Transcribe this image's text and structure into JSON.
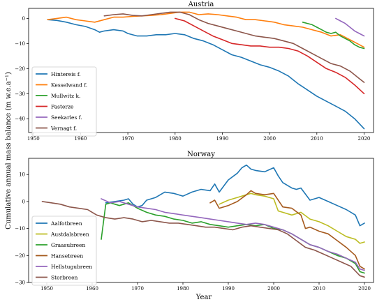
{
  "figure": {
    "ylabel": "Cumulative annual mass balance (m w.e.a⁻¹)",
    "xlabel": "Year"
  },
  "chart_data": [
    {
      "type": "line",
      "title": "Austria",
      "xlim": [
        1949,
        2022
      ],
      "ylim": [
        -45.5,
        4
      ],
      "xticks": [
        1950,
        1960,
        1970,
        1980,
        1990,
        2000,
        2010,
        2020
      ],
      "yticks": [
        0,
        -10,
        -20,
        -30,
        -40
      ],
      "legend_position": "lower-left",
      "series": [
        {
          "name": "Hintereis f.",
          "color": "#1f77b4",
          "x": [
            1953,
            1955,
            1957,
            1959,
            1961,
            1963,
            1964,
            1965,
            1967,
            1969,
            1970,
            1972,
            1974,
            1976,
            1978,
            1980,
            1982,
            1984,
            1986,
            1988,
            1990,
            1992,
            1994,
            1996,
            1998,
            2000,
            2002,
            2004,
            2006,
            2008,
            2010,
            2012,
            2014,
            2016,
            2018,
            2020
          ],
          "y": [
            -0.5,
            -0.8,
            -1.5,
            -2.5,
            -3.2,
            -4.5,
            -5.5,
            -5.0,
            -4.5,
            -5.0,
            -6.0,
            -7.0,
            -7.0,
            -6.5,
            -6.5,
            -6.0,
            -6.5,
            -8.0,
            -9.0,
            -10.5,
            -12.5,
            -14.5,
            -15.5,
            -17.0,
            -18.5,
            -19.5,
            -21.0,
            -23.0,
            -26.0,
            -28.5,
            -31.0,
            -33.0,
            -35.0,
            -37.0,
            -40.0,
            -44.0
          ]
        },
        {
          "name": "Kesselwand f.",
          "color": "#ff7f0e",
          "x": [
            1953,
            1955,
            1957,
            1959,
            1961,
            1963,
            1965,
            1967,
            1969,
            1971,
            1973,
            1975,
            1977,
            1979,
            1981,
            1983,
            1985,
            1987,
            1989,
            1991,
            1993,
            1995,
            1997,
            1999,
            2001,
            2003,
            2005,
            2007,
            2009,
            2011,
            2013,
            2015,
            2017,
            2019,
            2020
          ],
          "y": [
            -0.5,
            0.0,
            0.5,
            -0.5,
            -1.0,
            -1.5,
            -0.5,
            0.5,
            0.5,
            0.8,
            1.0,
            1.2,
            1.5,
            2.0,
            2.5,
            2.5,
            1.5,
            1.8,
            1.5,
            1.0,
            0.5,
            -0.5,
            -0.5,
            -1.0,
            -1.5,
            -2.5,
            -3.0,
            -3.5,
            -4.5,
            -5.5,
            -7.0,
            -6.5,
            -8.5,
            -10.5,
            -11.5
          ]
        },
        {
          "name": "Mullwitz k.",
          "color": "#2ca02c",
          "x": [
            2007,
            2008,
            2009,
            2010,
            2011,
            2012,
            2013,
            2014,
            2015,
            2016,
            2017,
            2018,
            2019,
            2020
          ],
          "y": [
            -1.5,
            -2.0,
            -2.5,
            -3.5,
            -4.5,
            -5.5,
            -6.0,
            -5.5,
            -7.0,
            -8.0,
            -9.0,
            -10.5,
            -11.5,
            -12.0
          ]
        },
        {
          "name": "Pasterze",
          "color": "#d62728",
          "x": [
            1980,
            1982,
            1984,
            1986,
            1988,
            1990,
            1992,
            1994,
            1996,
            1998,
            2000,
            2002,
            2004,
            2006,
            2008,
            2010,
            2012,
            2014,
            2016,
            2018,
            2020
          ],
          "y": [
            0.0,
            -1.0,
            -3.0,
            -5.0,
            -7.0,
            -8.5,
            -10.0,
            -10.5,
            -11.0,
            -11.0,
            -11.5,
            -11.5,
            -12.0,
            -13.0,
            -15.0,
            -17.5,
            -20.0,
            -21.5,
            -23.5,
            -26.5,
            -30.0
          ]
        },
        {
          "name": "Seekarles f.",
          "color": "#9467bd",
          "x": [
            2014,
            2015,
            2016,
            2017,
            2018,
            2019,
            2020
          ],
          "y": [
            0.0,
            -1.0,
            -2.0,
            -3.5,
            -5.0,
            -6.0,
            -7.0
          ]
        },
        {
          "name": "Vernagt f.",
          "color": "#8c564b",
          "x": [
            1965,
            1967,
            1969,
            1971,
            1973,
            1975,
            1977,
            1979,
            1981,
            1983,
            1985,
            1987,
            1989,
            1991,
            1993,
            1995,
            1997,
            1999,
            2001,
            2003,
            2005,
            2007,
            2009,
            2011,
            2013,
            2015,
            2017,
            2019,
            2020
          ],
          "y": [
            1.0,
            1.5,
            1.8,
            1.2,
            1.0,
            1.5,
            2.0,
            2.5,
            2.5,
            1.5,
            -0.5,
            -2.0,
            -3.0,
            -4.0,
            -5.0,
            -6.0,
            -7.0,
            -7.5,
            -8.0,
            -9.0,
            -10.0,
            -12.0,
            -14.0,
            -16.0,
            -18.0,
            -19.0,
            -21.0,
            -24.0,
            -25.5
          ]
        }
      ]
    },
    {
      "type": "line",
      "title": "Norway",
      "xlim": [
        1946,
        2022
      ],
      "ylim": [
        -30,
        16
      ],
      "xticks": [
        1950,
        1960,
        1970,
        1980,
        1990,
        2000,
        2010,
        2020
      ],
      "yticks": [
        10,
        0,
        -10,
        -20,
        -30
      ],
      "legend_position": "lower-left",
      "series": [
        {
          "name": "Aalfotbreen",
          "color": "#1f77b4",
          "x": [
            1963,
            1965,
            1967,
            1968,
            1969,
            1970,
            1971,
            1972,
            1974,
            1976,
            1978,
            1980,
            1982,
            1984,
            1986,
            1987,
            1988,
            1990,
            1992,
            1993,
            1994,
            1995,
            1996,
            1998,
            2000,
            2001,
            2002,
            2004,
            2005,
            2006,
            2008,
            2010,
            2012,
            2014,
            2016,
            2018,
            2019,
            2020
          ],
          "y": [
            -0.5,
            0.0,
            0.5,
            1.0,
            -1.0,
            -2.0,
            -1.5,
            0.5,
            1.5,
            3.5,
            3.0,
            2.0,
            3.5,
            4.5,
            4.0,
            6.5,
            3.5,
            8.0,
            10.5,
            12.5,
            13.5,
            12.0,
            11.5,
            11.0,
            12.5,
            9.5,
            7.0,
            5.0,
            4.5,
            5.0,
            0.5,
            1.5,
            0.0,
            -1.5,
            -3.0,
            -5.0,
            -9.0,
            -8.0
          ]
        },
        {
          "name": "Austdalsbreen",
          "color": "#bcbd22",
          "x": [
            1988,
            1990,
            1992,
            1994,
            1995,
            1996,
            1998,
            2000,
            2001,
            2002,
            2004,
            2006,
            2008,
            2010,
            2012,
            2014,
            2016,
            2018,
            2019,
            2020
          ],
          "y": [
            -1.0,
            0.5,
            1.5,
            2.5,
            3.0,
            2.5,
            2.0,
            1.0,
            -3.5,
            -4.0,
            -5.0,
            -4.0,
            -6.5,
            -7.5,
            -9.0,
            -11.0,
            -13.0,
            -14.0,
            -15.5,
            -15.0
          ]
        },
        {
          "name": "Graasubreen",
          "color": "#2ca02c",
          "x": [
            1962,
            1963,
            1964,
            1966,
            1968,
            1970,
            1972,
            1974,
            1976,
            1978,
            1980,
            1982,
            1984,
            1986,
            1988,
            1990,
            1992,
            1994,
            1996,
            1998,
            2000,
            2002,
            2004,
            2006,
            2008,
            2010,
            2012,
            2014,
            2016,
            2018,
            2019,
            2020
          ],
          "y": [
            -14.0,
            -1.0,
            -0.5,
            -1.5,
            -0.5,
            -2.5,
            -4.0,
            -5.0,
            -5.5,
            -6.5,
            -7.0,
            -8.0,
            -7.5,
            -8.5,
            -9.0,
            -9.5,
            -9.0,
            -8.5,
            -9.0,
            -8.5,
            -10.0,
            -10.5,
            -12.0,
            -14.0,
            -16.0,
            -17.0,
            -18.5,
            -20.0,
            -21.0,
            -23.0,
            -26.0,
            -26.5
          ]
        },
        {
          "name": "Hansebreen",
          "color": "#a55a1e",
          "x": [
            1986,
            1987,
            1988,
            1990,
            1992,
            1994,
            1995,
            1996,
            1998,
            2000,
            2002,
            2004,
            2006,
            2007,
            2008,
            2010,
            2012,
            2014,
            2016,
            2018,
            2019,
            2020
          ],
          "y": [
            -0.5,
            0.5,
            -2.5,
            -1.5,
            0.0,
            2.5,
            4.0,
            3.0,
            2.5,
            3.0,
            -2.0,
            -2.5,
            -5.0,
            -10.0,
            -9.5,
            -11.0,
            -12.0,
            -14.5,
            -17.0,
            -20.0,
            -24.0,
            -25.0
          ]
        },
        {
          "name": "Hellstugubreen",
          "color": "#9467bd",
          "x": [
            1962,
            1964,
            1966,
            1968,
            1970,
            1972,
            1974,
            1976,
            1978,
            1980,
            1982,
            1984,
            1986,
            1988,
            1990,
            1992,
            1994,
            1996,
            1998,
            2000,
            2002,
            2004,
            2006,
            2008,
            2010,
            2012,
            2014,
            2016,
            2018,
            2019,
            2020
          ],
          "y": [
            1.0,
            -0.5,
            0.0,
            -1.0,
            -2.0,
            -2.5,
            -3.0,
            -4.0,
            -4.5,
            -5.0,
            -5.5,
            -6.0,
            -6.5,
            -7.0,
            -7.5,
            -8.0,
            -8.5,
            -8.0,
            -8.5,
            -9.5,
            -10.5,
            -12.0,
            -14.0,
            -16.0,
            -17.0,
            -18.5,
            -19.5,
            -21.0,
            -22.5,
            -25.0,
            -25.5
          ]
        },
        {
          "name": "Storbreen",
          "color": "#8c564b",
          "x": [
            1949,
            1951,
            1953,
            1955,
            1957,
            1959,
            1961,
            1963,
            1965,
            1967,
            1969,
            1971,
            1973,
            1975,
            1977,
            1979,
            1981,
            1983,
            1985,
            1987,
            1989,
            1991,
            1993,
            1995,
            1997,
            1999,
            2001,
            2003,
            2005,
            2007,
            2009,
            2011,
            2013,
            2015,
            2017,
            2019,
            2020
          ],
          "y": [
            0.0,
            -0.5,
            -1.0,
            -2.0,
            -2.5,
            -3.0,
            -5.0,
            -6.0,
            -6.5,
            -6.0,
            -6.5,
            -7.5,
            -7.0,
            -7.5,
            -8.0,
            -8.0,
            -8.5,
            -9.0,
            -9.5,
            -9.5,
            -10.0,
            -10.5,
            -9.5,
            -9.0,
            -9.5,
            -10.0,
            -10.5,
            -12.0,
            -14.5,
            -17.0,
            -18.0,
            -19.5,
            -21.0,
            -22.5,
            -24.0,
            -27.5,
            -28.0
          ]
        }
      ]
    }
  ]
}
